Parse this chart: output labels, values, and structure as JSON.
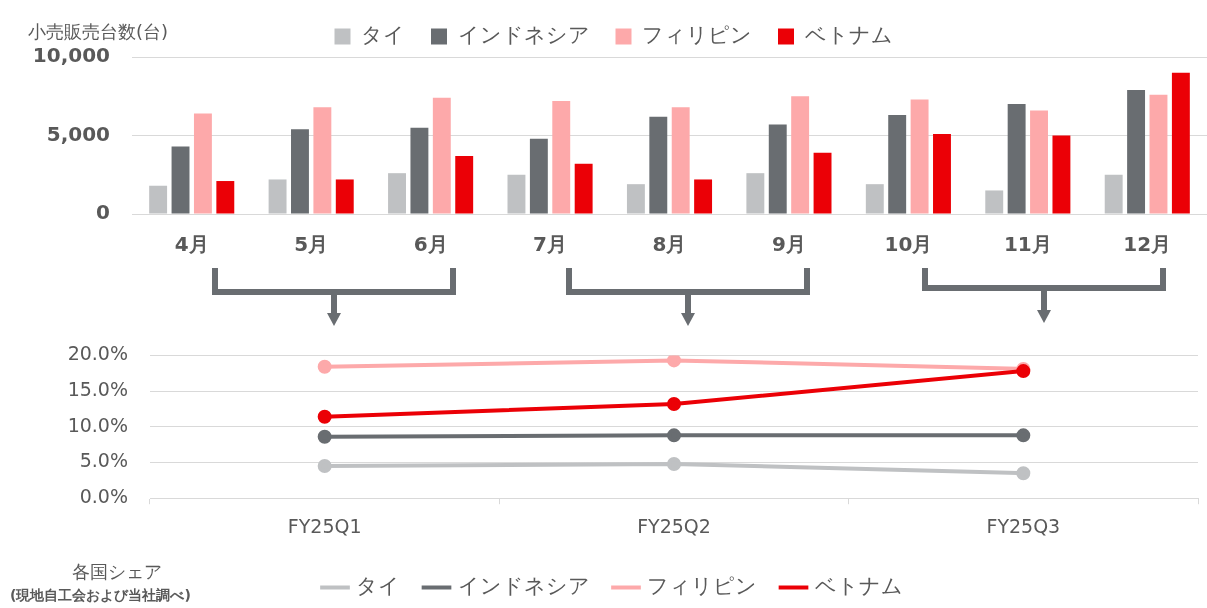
{
  "chart_data": [
    {
      "type": "bar",
      "ylabel": "小売販売台数(台)",
      "categories": [
        "4月",
        "5月",
        "6月",
        "7月",
        "8月",
        "9月",
        "10月",
        "11月",
        "12月"
      ],
      "series": [
        {
          "name": "タイ",
          "color": "#bfc1c3",
          "values": [
            1800,
            2200,
            2600,
            2500,
            1900,
            2600,
            1900,
            1500,
            2500
          ]
        },
        {
          "name": "インドネシア",
          "color": "#696d71",
          "values": [
            4300,
            5400,
            5500,
            4800,
            6200,
            5700,
            6300,
            7000,
            7900
          ]
        },
        {
          "name": "フィリピン",
          "color": "#fda9aa",
          "values": [
            6400,
            6800,
            7400,
            7200,
            6800,
            7500,
            7300,
            6600,
            7600
          ]
        },
        {
          "name": "ベトナム",
          "color": "#eb0006",
          "values": [
            2100,
            2200,
            3700,
            3200,
            2200,
            3900,
            5100,
            5000,
            9000
          ]
        }
      ],
      "ylim": [
        0,
        10000
      ],
      "yticks": [
        0,
        {
          "value": 5000,
          "label": "5,000"
        },
        {
          "value": 10000,
          "label": "10,000"
        }
      ],
      "grid": "y",
      "legend": "top"
    },
    {
      "type": "line",
      "ylabel": "各国シェア",
      "annotations": [
        "(現地自工会および当社調べ)"
      ],
      "categories": [
        "FY25Q1",
        "FY25Q2",
        "FY25Q3"
      ],
      "series": [
        {
          "name": "タイ",
          "color": "#bfc1c3",
          "values": [
            4.5,
            4.8,
            3.5
          ]
        },
        {
          "name": "インドネシア",
          "color": "#696d71",
          "values": [
            8.6,
            8.8,
            8.8
          ]
        },
        {
          "name": "フィリピン",
          "color": "#fda9aa",
          "values": [
            18.4,
            19.3,
            18.1
          ]
        },
        {
          "name": "ベトナム",
          "color": "#eb0006",
          "values": [
            11.4,
            13.2,
            17.8
          ]
        }
      ],
      "ylim": [
        0,
        20
      ],
      "yticks": [
        {
          "value": 0,
          "label": "0.0%"
        },
        {
          "value": 5,
          "label": "5.0%"
        },
        {
          "value": 10,
          "label": "10.0%"
        },
        {
          "value": 15,
          "label": "15.0%"
        },
        {
          "value": 20,
          "label": "20.0%"
        }
      ],
      "grid": "y",
      "legend": "bottom",
      "marker": "circle",
      "line_style": "solid"
    }
  ]
}
